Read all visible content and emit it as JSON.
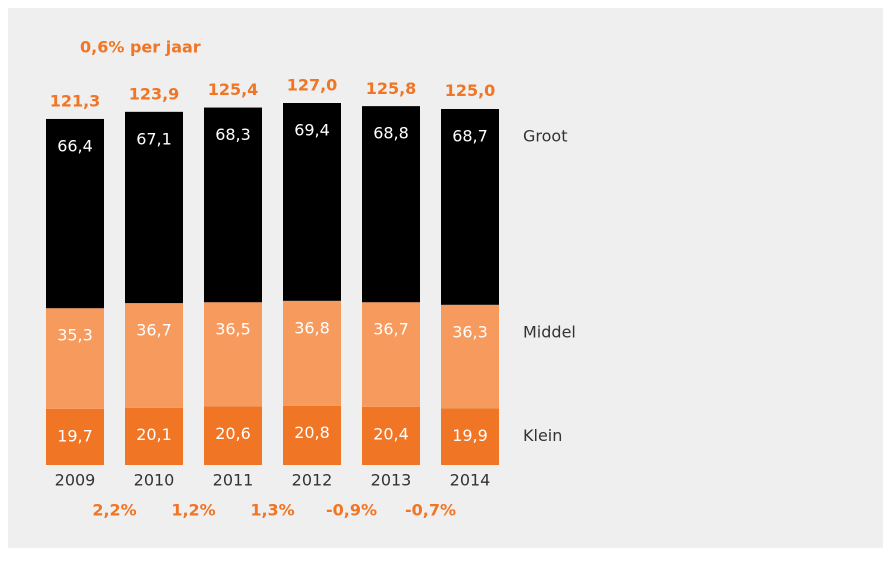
{
  "chart_data": {
    "type": "stacked_bar",
    "annotation": "0,6% per jaar",
    "categories": [
      "2009",
      "2010",
      "2011",
      "2012",
      "2013",
      "2014"
    ],
    "series": [
      {
        "name": "Klein",
        "color": "#f07524",
        "label_color": "#ffffff",
        "values": [
          19.7,
          20.1,
          20.6,
          20.8,
          20.4,
          19.9
        ],
        "value_labels": [
          "19,7",
          "20,1",
          "20,6",
          "20,8",
          "20,4",
          "19,9"
        ]
      },
      {
        "name": "Middel",
        "color": "#f79a5e",
        "label_color": "#ffffff",
        "values": [
          35.3,
          36.7,
          36.5,
          36.8,
          36.7,
          36.3
        ],
        "value_labels": [
          "35,3",
          "36,7",
          "36,5",
          "36,8",
          "36,7",
          "36,3"
        ]
      },
      {
        "name": "Groot",
        "color": "#000000",
        "label_color": "#ffffff",
        "values": [
          66.4,
          67.1,
          68.3,
          69.4,
          68.8,
          68.7
        ],
        "value_labels": [
          "66,4",
          "67,1",
          "68,3",
          "69,4",
          "68,8",
          "68,7"
        ]
      }
    ],
    "totals": {
      "values": [
        121.3,
        123.9,
        125.4,
        127.0,
        125.8,
        125.0
      ],
      "value_labels": [
        "121,3",
        "123,9",
        "125,4",
        "127,0",
        "125,8",
        "125,0"
      ]
    },
    "growth": {
      "values": [
        2.2,
        1.2,
        1.3,
        -0.9,
        -0.7
      ],
      "value_labels": [
        "2,2%",
        "1,2%",
        "1,3%",
        "-0,9%",
        "-0,7%"
      ]
    },
    "accent_color": "#f07524"
  }
}
